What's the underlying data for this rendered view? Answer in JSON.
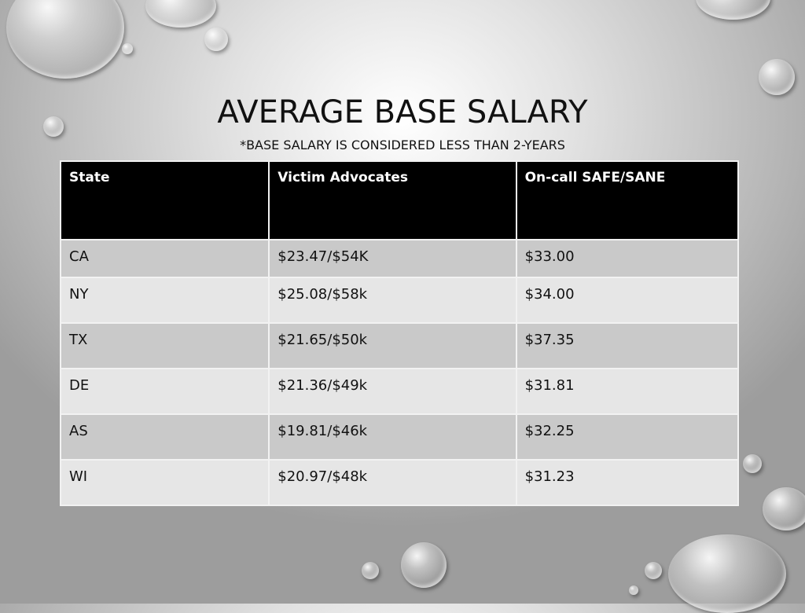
{
  "slide": {
    "title": "AVERAGE BASE SALARY",
    "subtitle": "*BASE SALARY IS CONSIDERED LESS THAN 2-YEARS"
  },
  "table": {
    "headers": [
      "State",
      "Victim Advocates",
      "On-call SAFE/SANE"
    ],
    "rows": [
      [
        "CA",
        "$23.47/$54K",
        "$33.00"
      ],
      [
        "NY",
        "$25.08/$58k",
        "$34.00"
      ],
      [
        "TX",
        "$21.65/$50k",
        "$37.35"
      ],
      [
        "DE",
        "$21.36/$49k",
        "$31.81"
      ],
      [
        "AS",
        "$19.81/$46k",
        "$32.25"
      ],
      [
        "WI",
        "$20.97/$48k",
        "$31.23"
      ]
    ]
  },
  "colors": {
    "header_bg": "#000000",
    "row_dark": "#c9c9c9",
    "row_light": "#e6e6e6"
  }
}
